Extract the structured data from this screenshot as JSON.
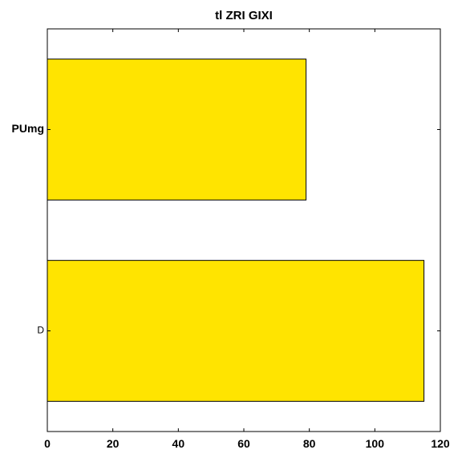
{
  "chart_data": {
    "type": "bar",
    "orientation": "horizontal",
    "title": "tl ZRI GIXI",
    "xlabel": "",
    "ylabel": "",
    "categories": [
      "PUmg",
      "D"
    ],
    "values": [
      79,
      115
    ],
    "xlim": [
      0,
      120
    ],
    "xticks": [
      "0",
      "20",
      "40",
      "60",
      "80",
      "100",
      "120"
    ],
    "grid": false,
    "legend": "none",
    "colors": {
      "bar": "#FFE400",
      "edge": "#000000"
    }
  }
}
